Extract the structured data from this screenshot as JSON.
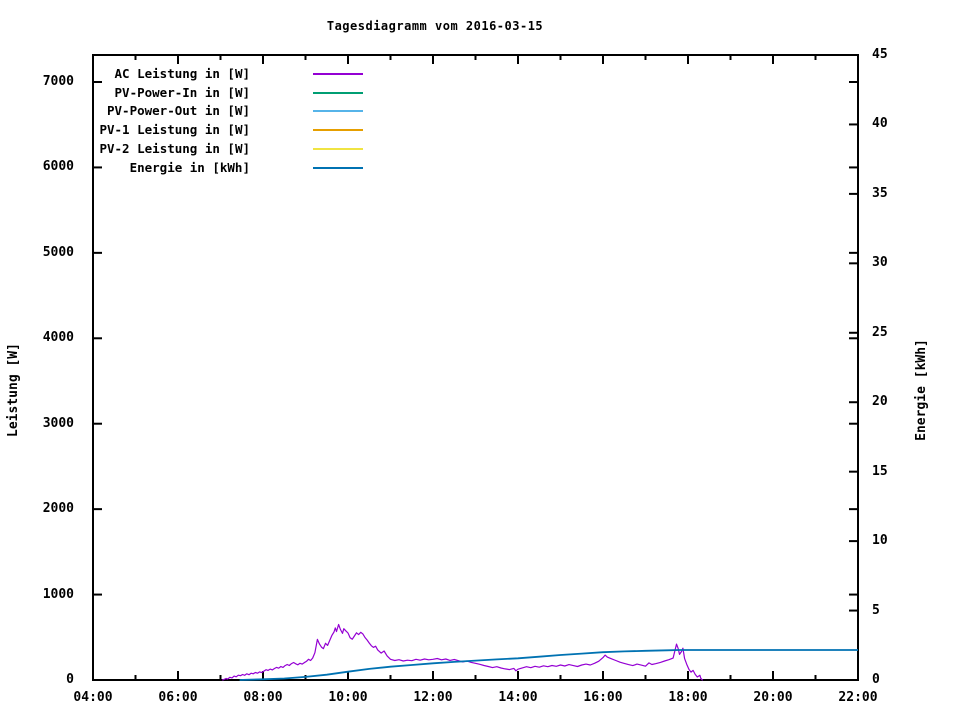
{
  "chart_data": {
    "type": "line",
    "title": "Tagesdiagramm vom 2016-03-15",
    "background_color": "#ffffff",
    "border_color": "#000000",
    "grid": false,
    "x": {
      "label": "",
      "unit": "hour-of-day",
      "range": [
        4,
        22
      ],
      "major_ticks": [
        "04:00",
        "06:00",
        "08:00",
        "10:00",
        "12:00",
        "14:00",
        "16:00",
        "18:00",
        "20:00",
        "22:00"
      ],
      "major_tick_hours": [
        4,
        6,
        8,
        10,
        12,
        14,
        16,
        18,
        20,
        22
      ],
      "minor_tick_hours": [
        5,
        7,
        9,
        11,
        13,
        15,
        17,
        19,
        21
      ]
    },
    "y_left": {
      "label": "Leistung [W]",
      "range": [
        0,
        7320
      ],
      "ticks": [
        0,
        1000,
        2000,
        3000,
        4000,
        5000,
        6000,
        7000
      ]
    },
    "y_right": {
      "label": "Energie [kWh]",
      "range": [
        0,
        45
      ],
      "ticks": [
        0,
        5,
        10,
        15,
        20,
        25,
        30,
        35,
        40,
        45
      ]
    },
    "legend": {
      "position": "inside-top-left",
      "entries": [
        {
          "label": "AC Leistung in [W]",
          "color": "#9400d3"
        },
        {
          "label": "PV-Power-In in [W]",
          "color": "#009e73"
        },
        {
          "label": "PV-Power-Out in [W]",
          "color": "#56b4e9"
        },
        {
          "label": "PV-1 Leistung in [W]",
          "color": "#e69f00"
        },
        {
          "label": "PV-2 Leistung in [W]",
          "color": "#f0e442"
        },
        {
          "label": "Energie in [kWh]",
          "color": "#0072b2"
        }
      ]
    },
    "series": [
      {
        "name": "AC Leistung in [W]",
        "color": "#9400d3",
        "y_axis": "left",
        "visible": true,
        "points": [
          [
            7.04,
            0
          ],
          [
            7.08,
            6
          ],
          [
            7.13,
            18
          ],
          [
            7.17,
            10
          ],
          [
            7.22,
            32
          ],
          [
            7.27,
            24
          ],
          [
            7.32,
            46
          ],
          [
            7.37,
            38
          ],
          [
            7.42,
            56
          ],
          [
            7.47,
            50
          ],
          [
            7.52,
            64
          ],
          [
            7.57,
            55
          ],
          [
            7.62,
            72
          ],
          [
            7.67,
            62
          ],
          [
            7.72,
            80
          ],
          [
            7.77,
            72
          ],
          [
            7.82,
            88
          ],
          [
            7.87,
            80
          ],
          [
            7.92,
            95
          ],
          [
            7.97,
            88
          ],
          [
            8.02,
            104
          ],
          [
            8.07,
            120
          ],
          [
            8.12,
            112
          ],
          [
            8.17,
            128
          ],
          [
            8.22,
            118
          ],
          [
            8.27,
            135
          ],
          [
            8.32,
            148
          ],
          [
            8.37,
            138
          ],
          [
            8.42,
            158
          ],
          [
            8.47,
            148
          ],
          [
            8.52,
            168
          ],
          [
            8.57,
            182
          ],
          [
            8.62,
            170
          ],
          [
            8.67,
            192
          ],
          [
            8.72,
            205
          ],
          [
            8.77,
            190
          ],
          [
            8.82,
            178
          ],
          [
            8.87,
            196
          ],
          [
            8.92,
            186
          ],
          [
            8.97,
            202
          ],
          [
            9.02,
            218
          ],
          [
            9.07,
            242
          ],
          [
            9.12,
            228
          ],
          [
            9.17,
            258
          ],
          [
            9.22,
            320
          ],
          [
            9.28,
            475
          ],
          [
            9.33,
            420
          ],
          [
            9.38,
            382
          ],
          [
            9.42,
            368
          ],
          [
            9.47,
            430
          ],
          [
            9.52,
            405
          ],
          [
            9.57,
            462
          ],
          [
            9.62,
            520
          ],
          [
            9.67,
            562
          ],
          [
            9.7,
            610
          ],
          [
            9.73,
            568
          ],
          [
            9.78,
            650
          ],
          [
            9.82,
            592
          ],
          [
            9.87,
            545
          ],
          [
            9.9,
            600
          ],
          [
            9.95,
            575
          ],
          [
            10,
            550
          ],
          [
            10.05,
            495
          ],
          [
            10.1,
            478
          ],
          [
            10.15,
            515
          ],
          [
            10.2,
            552
          ],
          [
            10.25,
            532
          ],
          [
            10.3,
            558
          ],
          [
            10.35,
            538
          ],
          [
            10.4,
            498
          ],
          [
            10.45,
            468
          ],
          [
            10.5,
            432
          ],
          [
            10.55,
            400
          ],
          [
            10.6,
            382
          ],
          [
            10.65,
            396
          ],
          [
            10.7,
            352
          ],
          [
            10.78,
            315
          ],
          [
            10.85,
            340
          ],
          [
            10.92,
            282
          ],
          [
            11,
            242
          ],
          [
            11.1,
            228
          ],
          [
            11.2,
            238
          ],
          [
            11.3,
            222
          ],
          [
            11.4,
            232
          ],
          [
            11.5,
            226
          ],
          [
            11.6,
            242
          ],
          [
            11.7,
            232
          ],
          [
            11.8,
            246
          ],
          [
            11.9,
            236
          ],
          [
            12,
            242
          ],
          [
            12.1,
            252
          ],
          [
            12.2,
            236
          ],
          [
            12.3,
            246
          ],
          [
            12.4,
            230
          ],
          [
            12.5,
            240
          ],
          [
            12.6,
            226
          ],
          [
            12.7,
            212
          ],
          [
            12.8,
            222
          ],
          [
            12.9,
            206
          ],
          [
            13,
            196
          ],
          [
            13.1,
            184
          ],
          [
            13.2,
            170
          ],
          [
            13.3,
            158
          ],
          [
            13.4,
            145
          ],
          [
            13.5,
            156
          ],
          [
            13.6,
            140
          ],
          [
            13.7,
            130
          ],
          [
            13.8,
            122
          ],
          [
            13.9,
            136
          ],
          [
            13.95,
            108
          ],
          [
            14,
            126
          ],
          [
            14.1,
            142
          ],
          [
            14.2,
            156
          ],
          [
            14.3,
            144
          ],
          [
            14.4,
            160
          ],
          [
            14.5,
            150
          ],
          [
            14.6,
            166
          ],
          [
            14.7,
            156
          ],
          [
            14.8,
            170
          ],
          [
            14.9,
            160
          ],
          [
            15,
            176
          ],
          [
            15.1,
            164
          ],
          [
            15.2,
            180
          ],
          [
            15.3,
            168
          ],
          [
            15.4,
            158
          ],
          [
            15.5,
            176
          ],
          [
            15.6,
            186
          ],
          [
            15.7,
            176
          ],
          [
            15.8,
            196
          ],
          [
            15.9,
            220
          ],
          [
            16,
            262
          ],
          [
            16.05,
            292
          ],
          [
            16.1,
            268
          ],
          [
            16.2,
            248
          ],
          [
            16.3,
            228
          ],
          [
            16.4,
            208
          ],
          [
            16.5,
            194
          ],
          [
            16.6,
            180
          ],
          [
            16.7,
            168
          ],
          [
            16.8,
            186
          ],
          [
            16.9,
            174
          ],
          [
            17,
            162
          ],
          [
            17.08,
            200
          ],
          [
            17.15,
            182
          ],
          [
            17.25,
            192
          ],
          [
            17.35,
            206
          ],
          [
            17.45,
            222
          ],
          [
            17.55,
            238
          ],
          [
            17.65,
            256
          ],
          [
            17.73,
            420
          ],
          [
            17.77,
            368
          ],
          [
            17.8,
            300
          ],
          [
            17.85,
            335
          ],
          [
            17.88,
            372
          ],
          [
            17.92,
            250
          ],
          [
            17.97,
            185
          ],
          [
            18.02,
            125
          ],
          [
            18.07,
            92
          ],
          [
            18.12,
            112
          ],
          [
            18.17,
            65
          ],
          [
            18.22,
            35
          ],
          [
            18.28,
            55
          ],
          [
            18.3,
            20
          ],
          [
            18.33,
            4
          ],
          [
            18.35,
            0
          ]
        ]
      },
      {
        "name": "PV-Power-In in [W]",
        "color": "#009e73",
        "y_axis": "left",
        "visible": false,
        "points": []
      },
      {
        "name": "PV-Power-Out in [W]",
        "color": "#56b4e9",
        "y_axis": "left",
        "visible": false,
        "points": []
      },
      {
        "name": "PV-1 Leistung in [W]",
        "color": "#e69f00",
        "y_axis": "left",
        "visible": false,
        "points": []
      },
      {
        "name": "PV-2 Leistung in [W]",
        "color": "#f0e442",
        "y_axis": "left",
        "visible": false,
        "points": []
      },
      {
        "name": "Energie in [kWh]",
        "color": "#0072b2",
        "y_axis": "right",
        "visible": true,
        "points": [
          [
            7.45,
            0
          ],
          [
            7.7,
            0.02
          ],
          [
            8,
            0.05
          ],
          [
            8.5,
            0.11
          ],
          [
            9,
            0.22
          ],
          [
            9.5,
            0.38
          ],
          [
            10,
            0.6
          ],
          [
            10.5,
            0.8
          ],
          [
            11,
            0.96
          ],
          [
            11.5,
            1.08
          ],
          [
            12,
            1.2
          ],
          [
            12.5,
            1.3
          ],
          [
            13,
            1.4
          ],
          [
            13.5,
            1.48
          ],
          [
            14,
            1.56
          ],
          [
            14.5,
            1.68
          ],
          [
            15,
            1.8
          ],
          [
            15.5,
            1.9
          ],
          [
            16,
            2
          ],
          [
            16.5,
            2.06
          ],
          [
            17,
            2.1
          ],
          [
            17.5,
            2.14
          ],
          [
            17.8,
            2.16
          ],
          [
            18.4,
            2.16
          ],
          [
            22,
            2.16
          ]
        ]
      }
    ]
  }
}
